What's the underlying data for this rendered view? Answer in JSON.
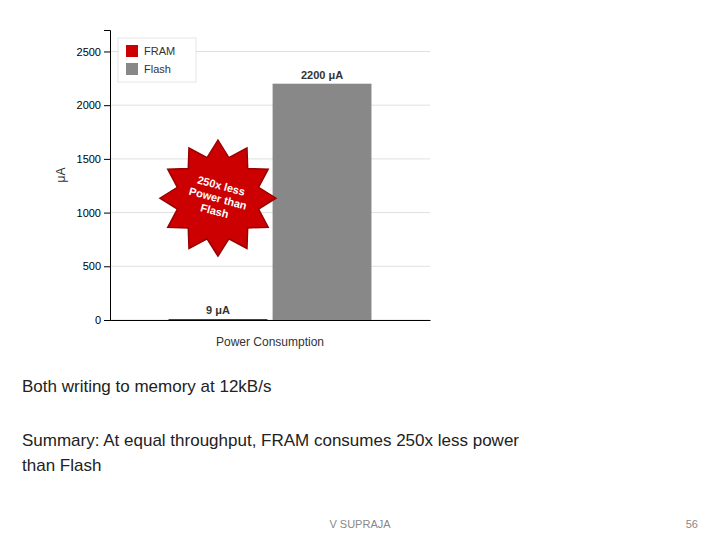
{
  "chart_data": {
    "type": "bar",
    "categories": [
      null
    ],
    "series": [
      {
        "name": "FRAM",
        "color": "#cc0000",
        "values": [
          9
        ],
        "value_labels": [
          "9 μA"
        ]
      },
      {
        "name": "Flash",
        "color": "#888888",
        "values": [
          2200
        ],
        "value_labels": [
          "2200 μA"
        ]
      }
    ],
    "xlabel": "Power Consumption",
    "ylabel": "μA",
    "ylim": [
      0,
      2700
    ],
    "yticks": [
      0,
      500,
      1000,
      1500,
      2000,
      2500
    ],
    "grid": true,
    "legend": "upper left",
    "data_labels": true,
    "annotations": [
      "250x less\nPower than\nFlash",
      "Both writing to memory at 12kB/s",
      "Summary: At equal throughput, FRAM consumes 250x less power\nthan Flash",
      "V SUPRAJA",
      "56"
    ]
  }
}
